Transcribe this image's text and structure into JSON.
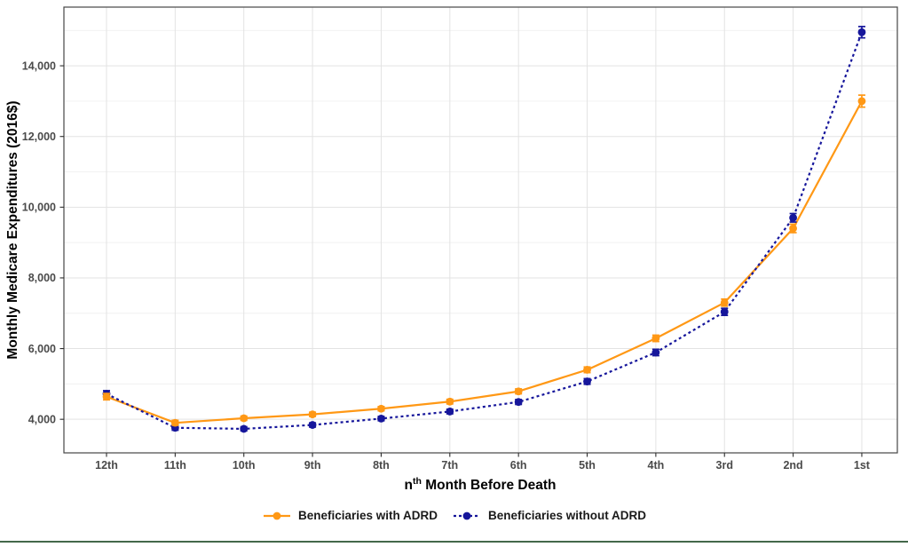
{
  "page": {
    "bottom_border_color": "#44684a"
  },
  "chart_data": {
    "type": "line",
    "title": "",
    "xlabel": {
      "base": "n",
      "sup": "th",
      "rest": " Month Before Death"
    },
    "ylabel": "Monthly Medicare Expenditures (2016$)",
    "categories": [
      "12th",
      "11th",
      "10th",
      "9th",
      "8th",
      "7th",
      "6th",
      "5th",
      "4th",
      "3rd",
      "2nd",
      "1st"
    ],
    "ylim": [
      3050,
      15660
    ],
    "yticks": [
      {
        "value": 4000,
        "label": "4,000"
      },
      {
        "value": 6000,
        "label": "6,000"
      },
      {
        "value": 8000,
        "label": "8,000"
      },
      {
        "value": 10000,
        "label": "10,000"
      },
      {
        "value": 12000,
        "label": "12,000"
      },
      {
        "value": 14000,
        "label": "14,000"
      }
    ],
    "yticks_minor": [
      5000,
      7000,
      9000,
      11000,
      13000,
      15000
    ],
    "grid": "horizontal major+minor, vertical at each month",
    "legend_position": "bottom-center",
    "series": [
      {
        "name": "Beneficiaries with ADRD",
        "color": "#FF9815",
        "linestyle": "solid",
        "marker": "circle",
        "values": [
          4640,
          3900,
          4030,
          4140,
          4300,
          4500,
          4790,
          5400,
          6290,
          7300,
          9400,
          13000
        ],
        "errors": [
          90,
          70,
          60,
          60,
          60,
          65,
          70,
          80,
          90,
          100,
          120,
          170
        ]
      },
      {
        "name": "Beneficiaries without ADRD",
        "color": "#16169B",
        "linestyle": "dashed",
        "marker": "circle",
        "values": [
          4720,
          3760,
          3730,
          3840,
          4020,
          4220,
          4490,
          5070,
          5890,
          7040,
          9700,
          14950
        ],
        "errors": [
          90,
          70,
          60,
          60,
          60,
          65,
          70,
          80,
          90,
          100,
          120,
          160
        ]
      }
    ]
  }
}
